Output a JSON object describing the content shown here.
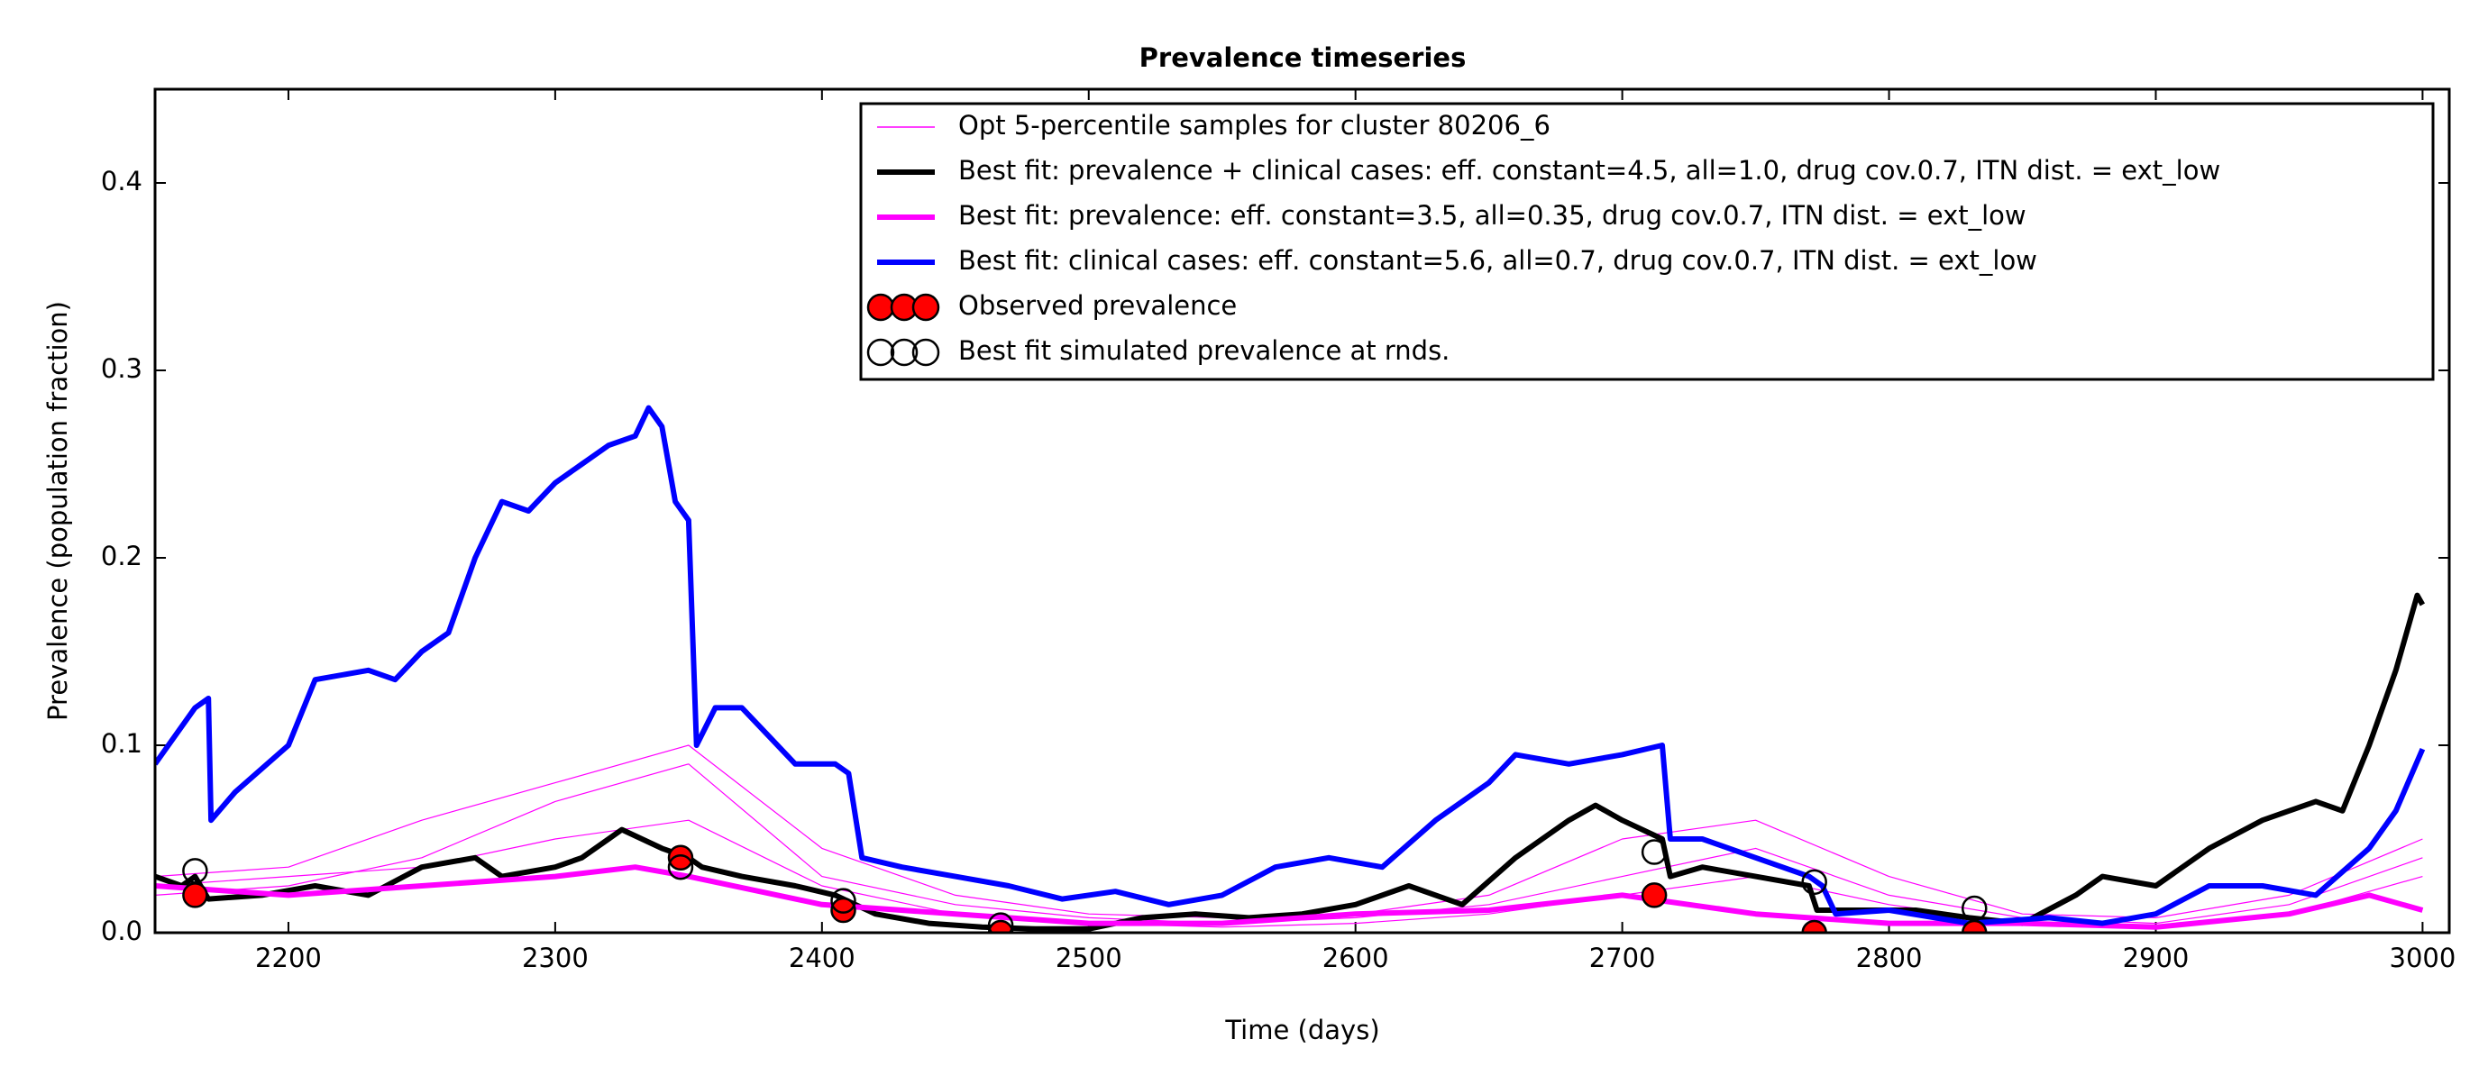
{
  "chart_data": {
    "type": "line",
    "title": "Prevalence timeseries",
    "x_label": "Time (days)",
    "y_label": "Prevalence (population fraction)",
    "xlim": [
      2150,
      3010
    ],
    "ylim": [
      0,
      0.45
    ],
    "xticks": [
      2200,
      2300,
      2400,
      2500,
      2600,
      2700,
      2800,
      2900,
      3000
    ],
    "yticks": [
      {
        "value": 0,
        "label": "0.0"
      },
      0.1,
      0.2,
      0.3,
      0.4
    ],
    "legend": "upper right",
    "series": [
      {
        "name": "Opt 5-percentile samples for cluster 80206_6",
        "color": "#ff00ff",
        "style": "thin",
        "x": [
          2150,
          2200,
          2250,
          2300,
          2350,
          2400,
          2450,
          2500,
          2550,
          2600,
          2650,
          2700,
          2750,
          2800,
          2850,
          2900,
          2950,
          3000
        ],
        "samples": [
          [
            0.03,
            0.035,
            0.06,
            0.08,
            0.1,
            0.045,
            0.02,
            0.01,
            0.008,
            0.01,
            0.02,
            0.05,
            0.06,
            0.03,
            0.01,
            0.008,
            0.02,
            0.05
          ],
          [
            0.02,
            0.025,
            0.04,
            0.07,
            0.09,
            0.03,
            0.015,
            0.008,
            0.005,
            0.008,
            0.015,
            0.03,
            0.045,
            0.02,
            0.008,
            0.005,
            0.015,
            0.04
          ],
          [
            0.025,
            0.03,
            0.035,
            0.05,
            0.06,
            0.025,
            0.01,
            0.005,
            0.003,
            0.005,
            0.01,
            0.02,
            0.03,
            0.015,
            0.005,
            0.004,
            0.01,
            0.03
          ]
        ]
      },
      {
        "name": "Best fit: prevalence + clinical cases: eff. constant=4.5, all=1.0, drug cov.0.7, ITN dist. = ext_low",
        "color": "#000000",
        "style": "thick",
        "x": [
          2150,
          2160,
          2165,
          2170,
          2190,
          2210,
          2230,
          2250,
          2270,
          2280,
          2300,
          2310,
          2320,
          2325,
          2340,
          2350,
          2355,
          2370,
          2390,
          2405,
          2420,
          2440,
          2460,
          2480,
          2500,
          2520,
          2540,
          2560,
          2580,
          2600,
          2620,
          2640,
          2660,
          2680,
          2690,
          2700,
          2715,
          2718,
          2730,
          2750,
          2770,
          2773,
          2790,
          2810,
          2830,
          2850,
          2870,
          2880,
          2900,
          2920,
          2940,
          2960,
          2970,
          2980,
          2990,
          2998,
          3000
        ],
        "values": [
          0.03,
          0.025,
          0.03,
          0.018,
          0.02,
          0.025,
          0.02,
          0.035,
          0.04,
          0.03,
          0.035,
          0.04,
          0.05,
          0.055,
          0.045,
          0.04,
          0.035,
          0.03,
          0.025,
          0.02,
          0.01,
          0.005,
          0.003,
          0.002,
          0.002,
          0.008,
          0.01,
          0.008,
          0.01,
          0.015,
          0.025,
          0.015,
          0.04,
          0.06,
          0.068,
          0.06,
          0.05,
          0.03,
          0.035,
          0.03,
          0.025,
          0.012,
          0.012,
          0.012,
          0.008,
          0.005,
          0.02,
          0.03,
          0.025,
          0.045,
          0.06,
          0.07,
          0.065,
          0.1,
          0.14,
          0.18,
          0.175
        ]
      },
      {
        "name": "Best fit: prevalence: eff. constant=3.5, all=0.35, drug cov.0.7, ITN dist. = ext_low",
        "color": "#ff00ff",
        "style": "thick",
        "x": [
          2150,
          2200,
          2250,
          2300,
          2330,
          2350,
          2400,
          2450,
          2500,
          2550,
          2600,
          2650,
          2700,
          2750,
          2800,
          2850,
          2900,
          2950,
          2980,
          3000
        ],
        "values": [
          0.025,
          0.02,
          0.025,
          0.03,
          0.035,
          0.03,
          0.015,
          0.01,
          0.005,
          0.005,
          0.01,
          0.012,
          0.02,
          0.01,
          0.005,
          0.005,
          0.003,
          0.01,
          0.02,
          0.012
        ]
      },
      {
        "name": "Best fit: clinical cases: eff. constant=5.6, all=0.7, drug cov.0.7, ITN dist. = ext_low",
        "color": "#0000ff",
        "style": "thick",
        "x": [
          2150,
          2165,
          2170,
          2171,
          2180,
          2200,
          2210,
          2230,
          2240,
          2250,
          2260,
          2270,
          2280,
          2290,
          2300,
          2310,
          2320,
          2330,
          2335,
          2340,
          2345,
          2350,
          2353,
          2360,
          2370,
          2380,
          2390,
          2405,
          2410,
          2415,
          2430,
          2450,
          2470,
          2490,
          2510,
          2530,
          2550,
          2570,
          2590,
          2610,
          2630,
          2650,
          2660,
          2680,
          2700,
          2715,
          2718,
          2730,
          2750,
          2770,
          2775,
          2780,
          2800,
          2830,
          2860,
          2880,
          2900,
          2920,
          2940,
          2960,
          2980,
          2990,
          3000
        ],
        "values": [
          0.09,
          0.12,
          0.125,
          0.06,
          0.075,
          0.1,
          0.135,
          0.14,
          0.135,
          0.15,
          0.16,
          0.2,
          0.23,
          0.225,
          0.24,
          0.25,
          0.26,
          0.265,
          0.28,
          0.27,
          0.23,
          0.22,
          0.1,
          0.12,
          0.12,
          0.105,
          0.09,
          0.09,
          0.085,
          0.04,
          0.035,
          0.03,
          0.025,
          0.018,
          0.022,
          0.015,
          0.02,
          0.035,
          0.04,
          0.035,
          0.06,
          0.08,
          0.095,
          0.09,
          0.095,
          0.1,
          0.05,
          0.05,
          0.04,
          0.03,
          0.025,
          0.01,
          0.012,
          0.005,
          0.008,
          0.005,
          0.01,
          0.025,
          0.025,
          0.02,
          0.045,
          0.065,
          0.098
        ]
      }
    ],
    "markers": [
      {
        "name": "Observed prevalence",
        "fill": "#ff0000",
        "edge": "#000000",
        "x": [
          2165,
          2347,
          2408,
          2467,
          2712,
          2772,
          2832
        ],
        "values": [
          0.02,
          0.04,
          0.012,
          0,
          0.02,
          0,
          0
        ]
      },
      {
        "name": "Best fit simulated prevalence at rnds.",
        "fill": "none",
        "edge": "#000000",
        "x": [
          2165,
          2347,
          2408,
          2467,
          2712,
          2772,
          2832
        ],
        "values": [
          0.033,
          0.035,
          0.017,
          0.004,
          0.043,
          0.027,
          0.013
        ]
      }
    ]
  }
}
